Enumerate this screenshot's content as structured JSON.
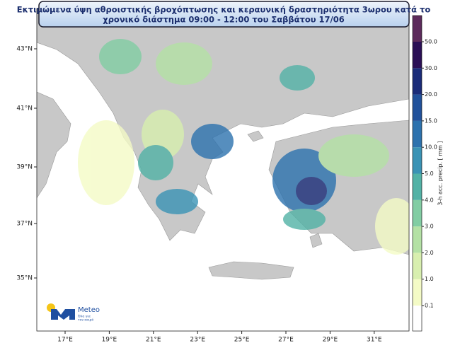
{
  "header": {
    "title_lines": [
      "Εκτιμώμενα ύψη αθροιστικής βροχόπτωσης και κεραυνική δραστηριότητα 3ωρου κατά το",
      "χρονικό διάστημα 09:00 - 12:00 του Σαββάτου 17/06"
    ]
  },
  "axes": {
    "lon_labels": [
      "17°E",
      "19°E",
      "21°E",
      "23°E",
      "25°E",
      "27°E",
      "29°E",
      "31°E"
    ],
    "lat_labels": [
      "43°N",
      "41°N",
      "39°N",
      "37°N",
      "35°N"
    ]
  },
  "colorbar": {
    "label": "3-h acc. precip. [ mm ]",
    "ticks": [
      "0.1",
      "1.0",
      "2.0",
      "3.0",
      "4.0",
      "5.0",
      "10.0",
      "15.0",
      "20.0",
      "30.0",
      "50.0"
    ],
    "colors": [
      "#ffffff",
      "#f4fbc6",
      "#d8efaf",
      "#b4e1a5",
      "#82cda3",
      "#52b2a6",
      "#3a93b5",
      "#2d72ae",
      "#21519b",
      "#1b2c79",
      "#2b0f56",
      "#5d2b5c"
    ]
  },
  "logo": {
    "name": "Meteo",
    "tagline_lines": [
      "Όλα για",
      "τον καιρό"
    ]
  }
}
